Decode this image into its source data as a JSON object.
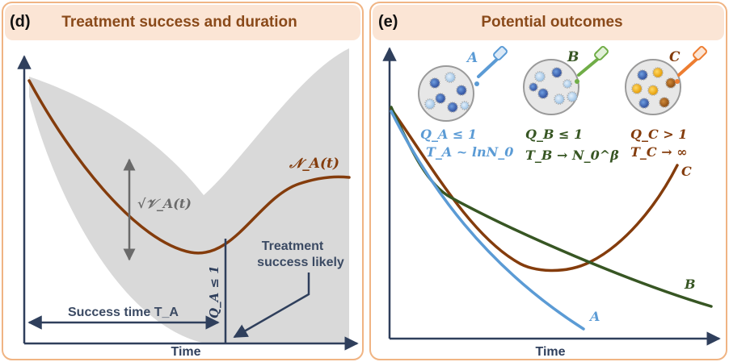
{
  "panel_d": {
    "tag": "(d)",
    "title": "Treatment success and duration",
    "xlabel": "Time",
    "curve_label": "𝒩_A(t)",
    "variance_label": "√𝒱_A(t)",
    "q_label": "Q_A ≤ 1",
    "success_time_label": "Success time T_A",
    "success_likely_line1": "Treatment",
    "success_likely_line2": "success likely"
  },
  "panel_e": {
    "tag": "(e)",
    "title": "Potential outcomes",
    "xlabel": "Time",
    "dish_letters": [
      "A",
      "B",
      "C"
    ],
    "curve_labels": [
      "A",
      "B",
      "C"
    ],
    "formulas": {
      "A_q": "Q_A ≤ 1",
      "A_t": "T_A ~ lnN_0",
      "B_q": "Q_B ≤ 1",
      "B_t": "T_B → N_0^β",
      "C_q": "Q_C > 1",
      "C_t": "T_C → ∞"
    },
    "colors": {
      "A": "#5b9bd5",
      "B": "#375623",
      "C": "#843c0c"
    }
  }
}
